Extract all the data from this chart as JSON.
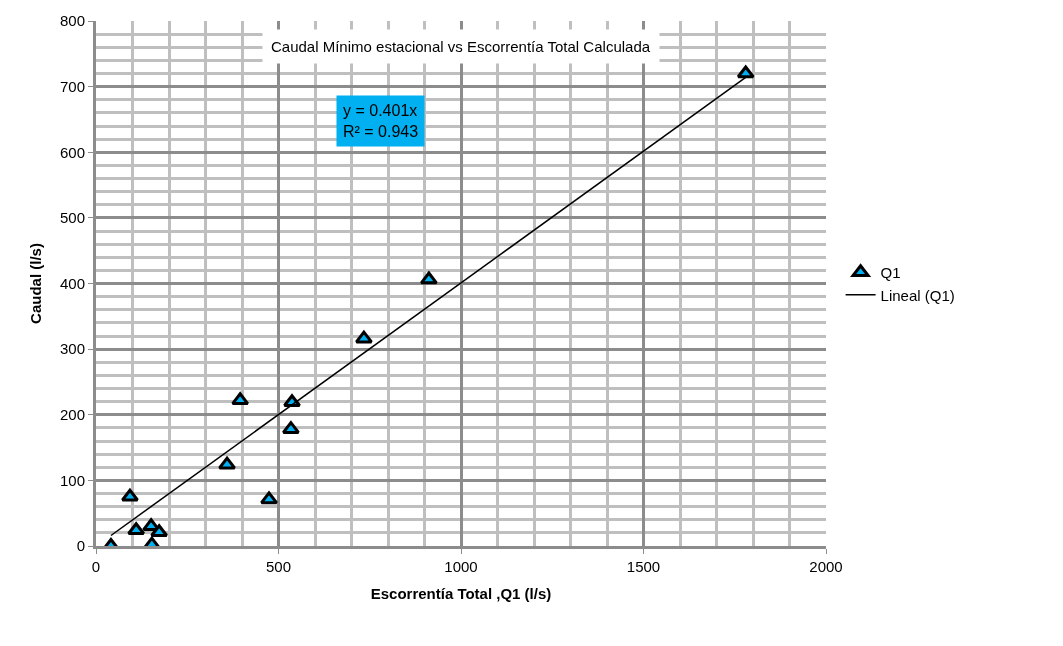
{
  "chart_data": {
    "type": "scatter",
    "title": "Caudal Mínimo estacional vs Escorrentía Total Calculada",
    "xlabel": "Escorrentía Total ,Q1 (l/s)",
    "ylabel": "Caudal (l/s)",
    "annotations": [
      "y = 0.401x\nR² = 0.943"
    ],
    "series": [
      {
        "name": "Q1",
        "color": "#00b0f0",
        "marker": "triangle",
        "x": [
          41,
          93,
          110,
          151,
          153,
          173,
          359,
          395,
          474,
          534,
          537,
          734,
          912,
          1780
        ],
        "values": [
          0,
          75,
          24,
          30,
          2,
          21,
          124,
          222,
          71,
          178,
          219,
          316,
          406,
          720
        ]
      },
      {
        "name": "Lineal (Q1)",
        "type": "line",
        "color": "#000000",
        "x": [
          41,
          1780
        ],
        "values": [
          16,
          714
        ]
      }
    ],
    "xlim": [
      0,
      2000
    ],
    "xticks": [
      0,
      500,
      1000,
      1500,
      2000
    ],
    "ylim": [
      0,
      800
    ],
    "yticks": [
      0,
      100,
      200,
      300,
      400,
      500,
      600,
      700,
      800
    ],
    "grid": true,
    "legend": "right"
  }
}
